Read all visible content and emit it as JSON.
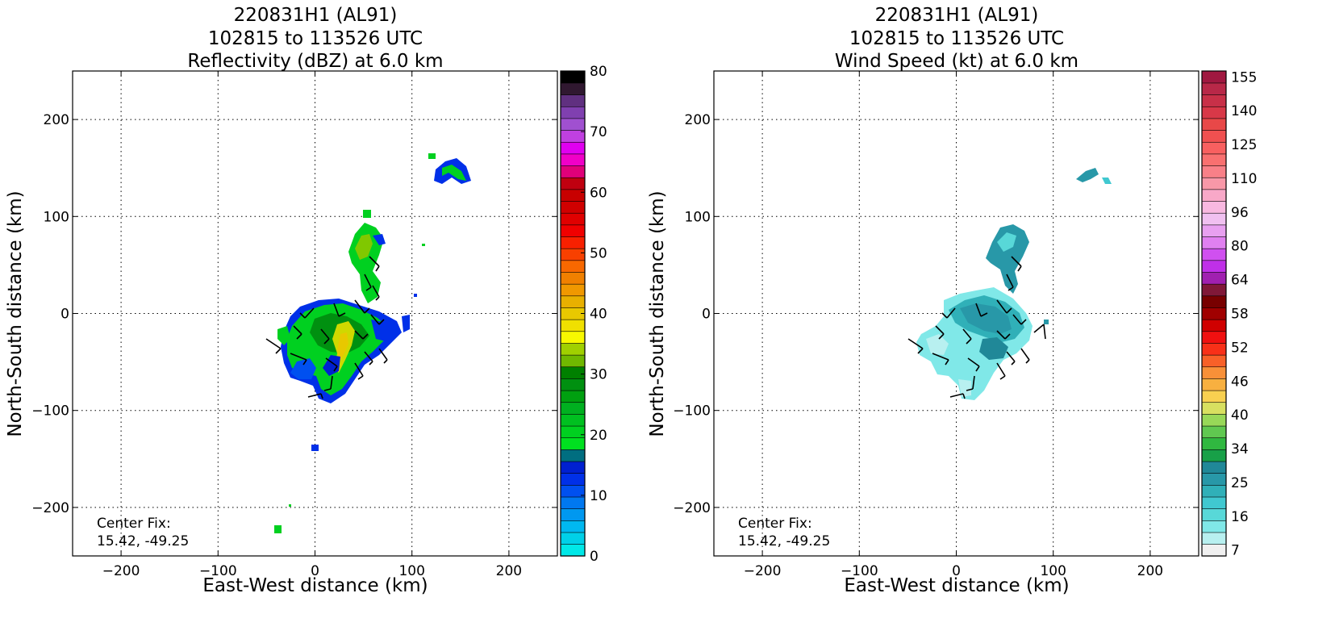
{
  "panels": [
    {
      "title_lines": [
        "220831H1 (AL91)",
        "102815 to 113526 UTC",
        "Reflectivity (dBZ) at 6.0 km"
      ],
      "center_fix_label": "Center Fix:",
      "center_fix_value": "15.42, -49.25"
    },
    {
      "title_lines": [
        "220831H1 (AL91)",
        "102815 to 113526 UTC",
        "Wind Speed (kt) at 6.0 km"
      ],
      "center_fix_label": "Center Fix:",
      "center_fix_value": "15.42, -49.25"
    }
  ],
  "chart_data": [
    {
      "type": "heatmap",
      "title": "220831H1 (AL91) 102815 to 113526 UTC Reflectivity (dBZ) at 6.0 km",
      "xlabel": "East-West distance (km)",
      "ylabel": "North-South distance (km)",
      "xlim": [
        -250,
        250
      ],
      "ylim": [
        -250,
        250
      ],
      "xticks": [
        -200,
        -100,
        0,
        100,
        200
      ],
      "yticks": [
        -200,
        -100,
        0,
        100,
        200
      ],
      "tick_labels": [
        "−200",
        "−100",
        "0",
        "100",
        "200"
      ],
      "grid": true,
      "colorbar": {
        "ticks": [
          0,
          10,
          20,
          30,
          40,
          50,
          60,
          70,
          80
        ],
        "min": 0,
        "max": 80,
        "colors": [
          "#00e8e8",
          "#00d0e8",
          "#00b8f0",
          "#0098f0",
          "#0078f0",
          "#0050f0",
          "#0030e8",
          "#0020d0",
          "#006e80",
          "#00e020",
          "#00d020",
          "#00c020",
          "#00b020",
          "#00a010",
          "#009010",
          "#008000",
          "#70b800",
          "#a0d000",
          "#f8f800",
          "#f0e000",
          "#e8c800",
          "#e8b000",
          "#f09800",
          "#f08000",
          "#f86800",
          "#f84000",
          "#f82000",
          "#f00000",
          "#e00000",
          "#d00000",
          "#c80000",
          "#c00010",
          "#e0007a",
          "#f000c8",
          "#e000f0",
          "#c040e0",
          "#a050d0",
          "#8040b0",
          "#603080",
          "#301830",
          "#000000"
        ]
      },
      "annotation": "Center Fix: 15.42, -49.25"
    },
    {
      "type": "heatmap",
      "title": "220831H1 (AL91) 102815 to 113526 UTC Wind Speed (kt) at 6.0 km",
      "xlabel": "East-West distance (km)",
      "ylabel": "North-South distance (km)",
      "xlim": [
        -250,
        250
      ],
      "ylim": [
        -250,
        250
      ],
      "xticks": [
        -200,
        -100,
        0,
        100,
        200
      ],
      "yticks": [
        -200,
        -100,
        0,
        100,
        200
      ],
      "tick_labels": [
        "−200",
        "−100",
        "0",
        "100",
        "200"
      ],
      "grid": true,
      "colorbar": {
        "ticks": [
          "7",
          "16",
          "25",
          "34",
          "40",
          "46",
          "52",
          "58",
          "64",
          "80",
          "96",
          "110",
          "125",
          "140",
          "155"
        ],
        "colors": [
          "#f0f0f0",
          "#b8f0f0",
          "#80e8e8",
          "#58d8d8",
          "#40c8d0",
          "#30b0b8",
          "#2898a8",
          "#208898",
          "#18a048",
          "#30b840",
          "#60c850",
          "#98d858",
          "#d8e060",
          "#f8d050",
          "#f8b040",
          "#f89038",
          "#f86028",
          "#f83018",
          "#f01010",
          "#d00000",
          "#a00000",
          "#780000",
          "#801838",
          "#a020b0",
          "#c030e8",
          "#d050f0",
          "#e080f0",
          "#e8a0f0",
          "#f0c0f0",
          "#f8b8e0",
          "#f8a8c8",
          "#f898a8",
          "#f88088",
          "#f87070",
          "#f86060",
          "#f05050",
          "#e84848",
          "#d83848",
          "#c83048",
          "#b82848",
          "#a01840"
        ]
      },
      "annotation": "Center Fix: 15.42, -49.25"
    }
  ]
}
